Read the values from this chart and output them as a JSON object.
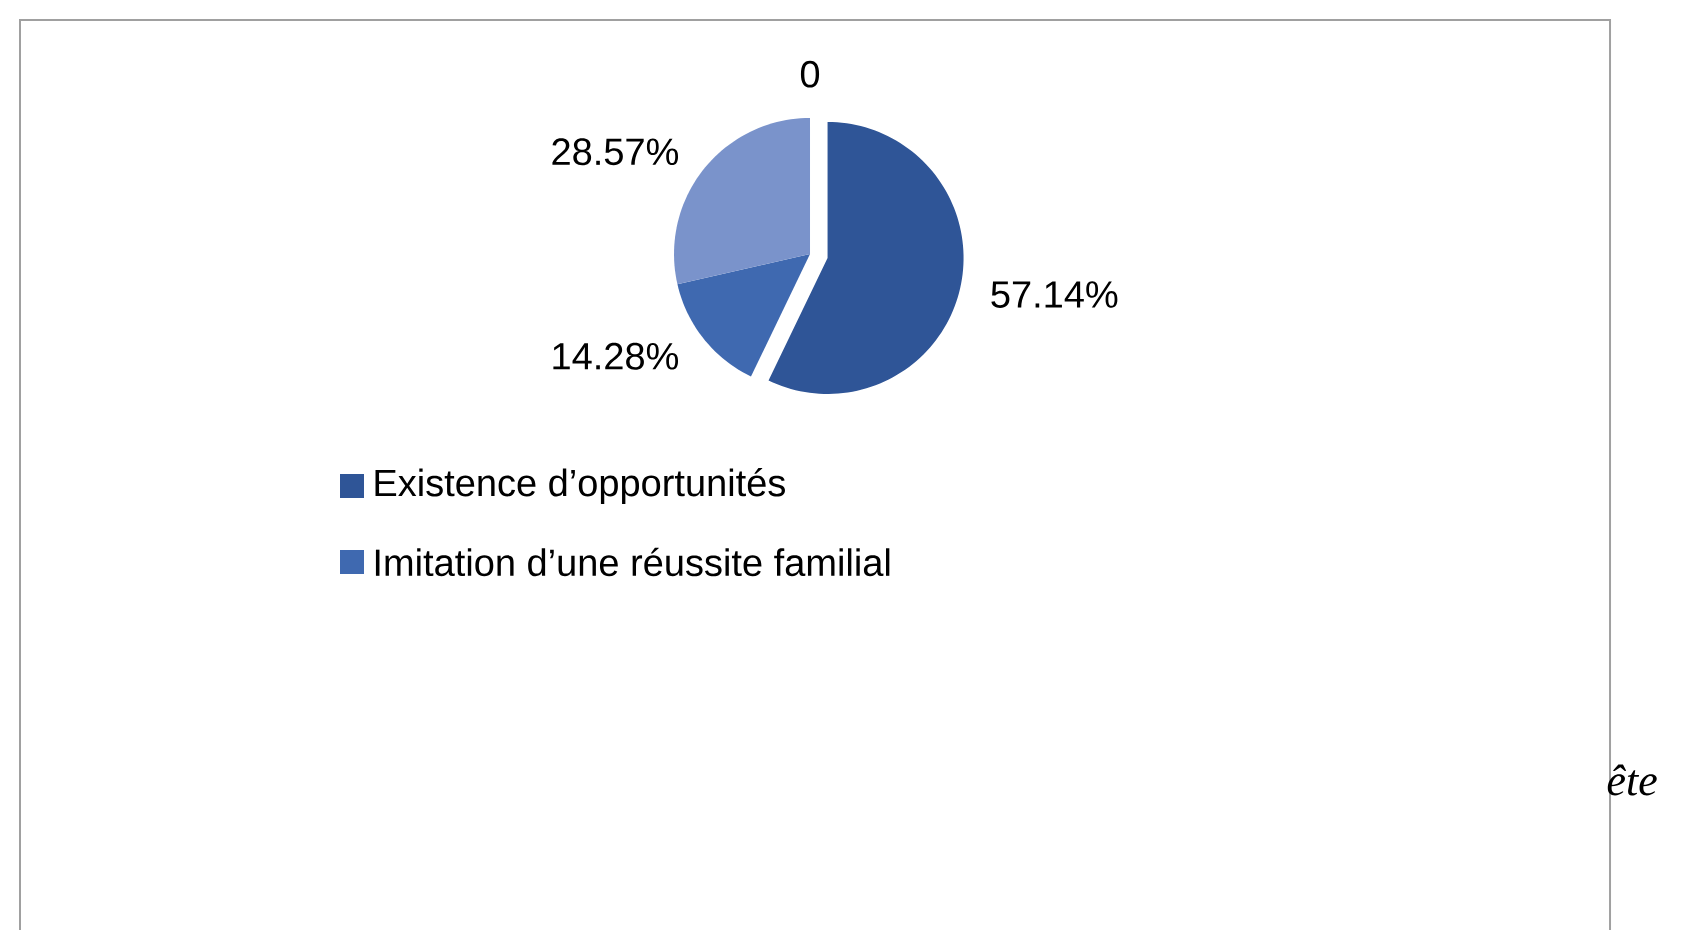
{
  "chart_data": {
    "type": "pie",
    "categories": [
      "Existence d’opportunités",
      "Imitation d’une réussite familial",
      null,
      null
    ],
    "values": [
      57.14,
      14.28,
      28.57,
      0
    ],
    "colors": [
      "#2f5597",
      "#3f69b0",
      "#7a93cb",
      "#a9b8dd"
    ],
    "value_labels": [
      "57.14%",
      "14.28%",
      "28.57%",
      "0"
    ],
    "legend": "bottom",
    "annotations": [
      "ête"
    ]
  }
}
